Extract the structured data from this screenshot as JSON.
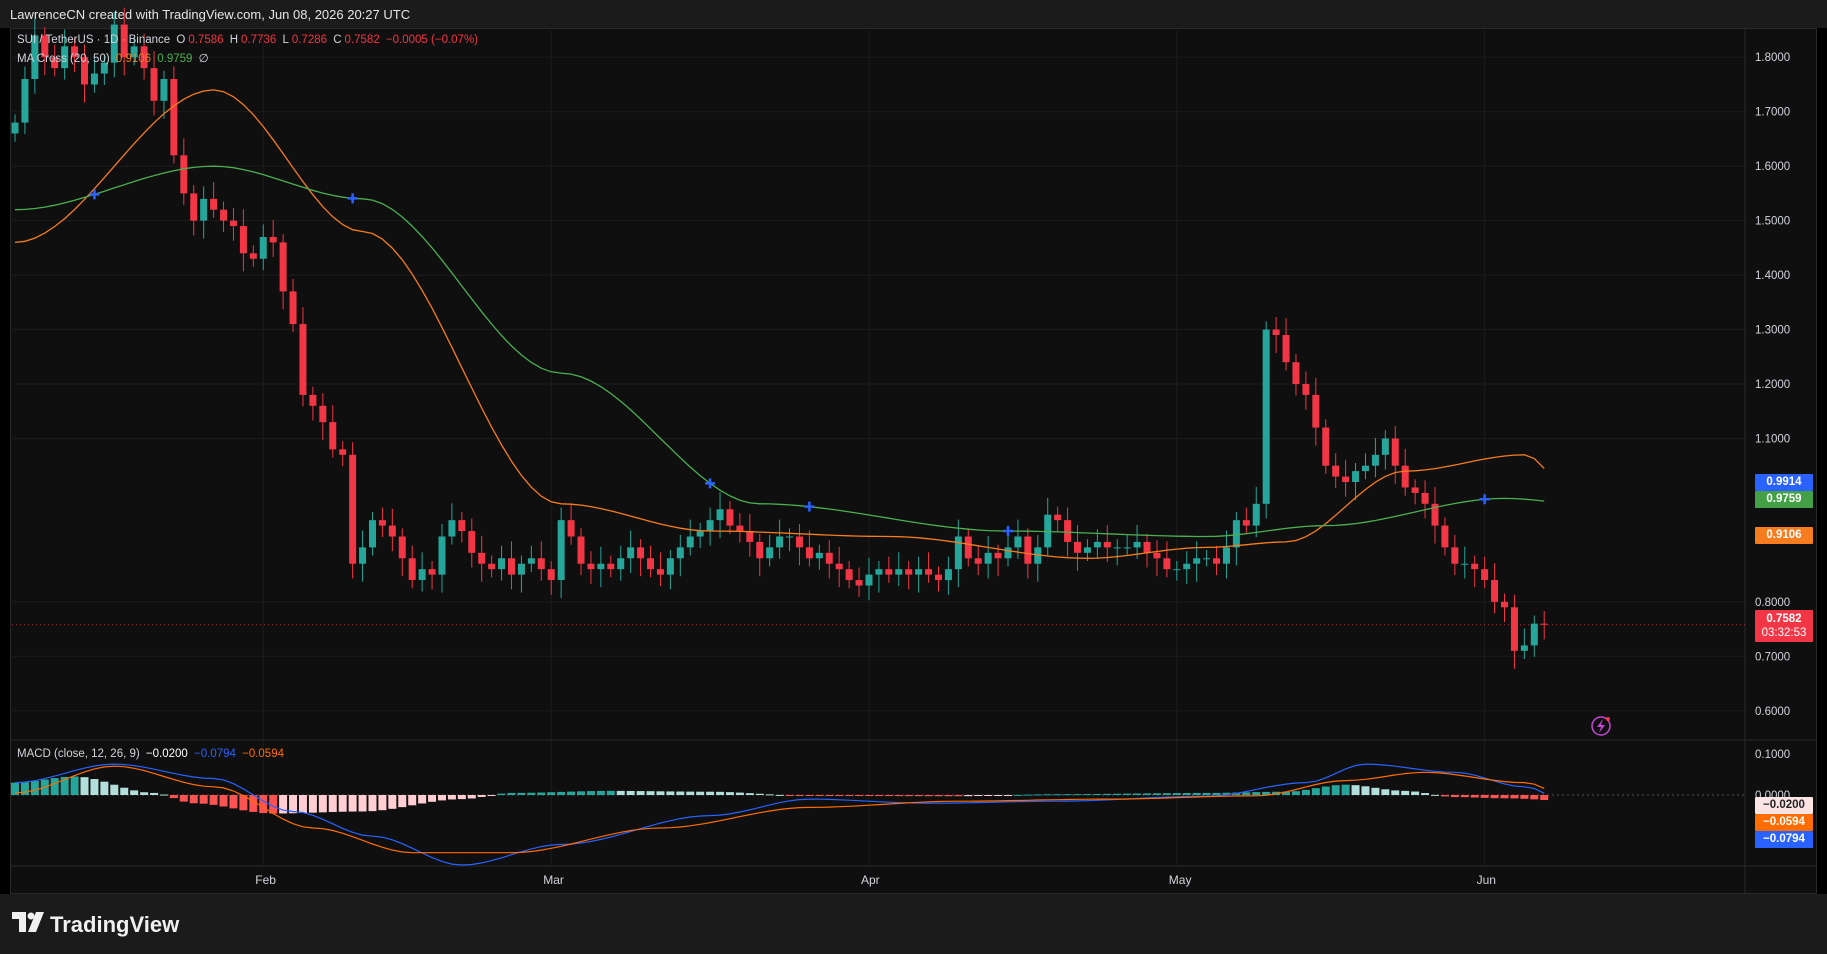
{
  "header": {
    "attribution": "LawrenceCN created with TradingView.com, Jun 08, 2026 20:27 UTC"
  },
  "legend": {
    "symbol": "SUI / TetherUS · 1D · Binance",
    "o_label": "O",
    "o": "0.7586",
    "h_label": "H",
    "h": "0.7736",
    "l_label": "L",
    "l": "0.7286",
    "c_label": "C",
    "c": "0.7582",
    "change": "−0.0005 (−0.07%)",
    "ma_label": "MA Cross (20, 50)",
    "ma20": "0.9106",
    "ma50": "0.9759",
    "ma_extra": "∅"
  },
  "macd_legend": {
    "label": "MACD (close, 12, 26, 9)",
    "hist": "−0.0200",
    "macd": "−0.0794",
    "signal": "−0.0594"
  },
  "price_axis": {
    "ticks": [
      "1.8000",
      "1.7000",
      "1.6000",
      "1.5000",
      "1.4000",
      "1.3000",
      "1.2000",
      "1.1000",
      "0.8000",
      "0.7000",
      "0.6000"
    ],
    "tags": {
      "crossover": "0.9914",
      "ma50": "0.9759",
      "ma20": "0.9106",
      "last": "0.7582",
      "countdown": "03:32:53"
    }
  },
  "macd_axis": {
    "ticks": [
      "0.1000",
      "0.0000"
    ],
    "tags": {
      "hist": "−0.0200",
      "signal": "−0.0594",
      "macd": "−0.0794"
    }
  },
  "time_axis": {
    "labels": [
      "Feb",
      "Mar",
      "Apr",
      "May",
      "Jun"
    ]
  },
  "branding": {
    "logo_mark": "𝟭𝟳",
    "logo_text": "TradingView"
  },
  "colors": {
    "up": "#26a69a",
    "down": "#f23645",
    "ma20": "#f57c1f",
    "ma50": "#4caf50",
    "macd": "#2962ff",
    "signal": "#ff6d00",
    "cross": "#2962ff"
  },
  "chart_data": [
    {
      "type": "candlestick",
      "title": "SUI / TetherUS · 1D · Binance",
      "interval": "1D",
      "ylim": [
        0.55,
        1.85
      ],
      "x_labels": [
        "Feb",
        "Mar",
        "Apr",
        "May",
        "Jun"
      ],
      "ohlc_note": "approximate daily closes read from chart",
      "closes": [
        1.68,
        1.76,
        1.84,
        1.8,
        1.78,
        1.82,
        1.8,
        1.75,
        1.77,
        1.79,
        1.86,
        1.8,
        1.82,
        1.78,
        1.72,
        1.76,
        1.62,
        1.55,
        1.5,
        1.54,
        1.52,
        1.5,
        1.49,
        1.44,
        1.43,
        1.47,
        1.46,
        1.37,
        1.31,
        1.18,
        1.16,
        1.13,
        1.08,
        1.07,
        0.87,
        0.9,
        0.95,
        0.94,
        0.92,
        0.88,
        0.84,
        0.86,
        0.85,
        0.92,
        0.95,
        0.93,
        0.89,
        0.87,
        0.86,
        0.88,
        0.85,
        0.87,
        0.88,
        0.86,
        0.84,
        0.95,
        0.92,
        0.87,
        0.86,
        0.87,
        0.86,
        0.88,
        0.9,
        0.88,
        0.86,
        0.85,
        0.88,
        0.9,
        0.92,
        0.93,
        0.95,
        0.97,
        0.94,
        0.93,
        0.91,
        0.88,
        0.9,
        0.92,
        0.92,
        0.9,
        0.88,
        0.89,
        0.87,
        0.86,
        0.84,
        0.83,
        0.85,
        0.86,
        0.85,
        0.86,
        0.85,
        0.86,
        0.85,
        0.84,
        0.86,
        0.92,
        0.88,
        0.87,
        0.89,
        0.88,
        0.9,
        0.92,
        0.87,
        0.9,
        0.96,
        0.95,
        0.91,
        0.89,
        0.9,
        0.91,
        0.9,
        0.9,
        0.9,
        0.91,
        0.89,
        0.88,
        0.86,
        0.86,
        0.87,
        0.88,
        0.88,
        0.87,
        0.9,
        0.95,
        0.94,
        0.98,
        1.3,
        1.29,
        1.24,
        1.2,
        1.18,
        1.12,
        1.05,
        1.03,
        1.02,
        1.04,
        1.05,
        1.07,
        1.1,
        1.05,
        1.01,
        1.0,
        0.98,
        0.94,
        0.9,
        0.87,
        0.87,
        0.86,
        0.84,
        0.8,
        0.79,
        0.71,
        0.72,
        0.76,
        0.758
      ]
    },
    {
      "type": "line",
      "series": [
        {
          "name": "MA 20",
          "values_at": [
            [
              0,
              1.46
            ],
            [
              20,
              1.74
            ],
            [
              35,
              1.48
            ],
            [
              55,
              0.98
            ],
            [
              70,
              0.93
            ],
            [
              88,
              0.92
            ],
            [
              108,
              0.88
            ],
            [
              120,
              0.9
            ],
            [
              128,
              0.91
            ],
            [
              140,
              1.04
            ],
            [
              152,
              1.07
            ],
            [
              160,
              0.91
            ]
          ]
        },
        {
          "name": "MA 50",
          "values_at": [
            [
              0,
              1.52
            ],
            [
              20,
              1.6
            ],
            [
              35,
              1.54
            ],
            [
              55,
              1.22
            ],
            [
              75,
              0.98
            ],
            [
              100,
              0.93
            ],
            [
              120,
              0.92
            ],
            [
              132,
              0.94
            ],
            [
              150,
              0.99
            ],
            [
              160,
              0.976
            ]
          ]
        }
      ]
    },
    {
      "type": "bar",
      "title": "MACD (close, 12, 26, 9)",
      "ylim": [
        -0.16,
        0.11
      ],
      "series": [
        {
          "name": "histogram",
          "values_at": [
            [
              0,
              0.03
            ],
            [
              6,
              0.045
            ],
            [
              14,
              0.005
            ],
            [
              18,
              -0.02
            ],
            [
              26,
              -0.045
            ],
            [
              35,
              -0.04
            ],
            [
              45,
              -0.01
            ],
            [
              50,
              0.005
            ],
            [
              60,
              0.01
            ],
            [
              70,
              0.008
            ],
            [
              80,
              -0.002
            ],
            [
              95,
              -0.003
            ],
            [
              105,
              0.002
            ],
            [
              120,
              0.005
            ],
            [
              128,
              0.008
            ],
            [
              134,
              0.025
            ],
            [
              140,
              0.01
            ],
            [
              145,
              -0.005
            ],
            [
              150,
              -0.008
            ],
            [
              160,
              -0.02
            ]
          ]
        },
        {
          "name": "MACD",
          "values_at": [
            [
              0,
              0.03
            ],
            [
              10,
              0.075
            ],
            [
              20,
              0.04
            ],
            [
              28,
              -0.04
            ],
            [
              36,
              -0.1
            ],
            [
              45,
              -0.17
            ],
            [
              55,
              -0.12
            ],
            [
              70,
              -0.05
            ],
            [
              80,
              -0.01
            ],
            [
              92,
              -0.02
            ],
            [
              105,
              -0.015
            ],
            [
              120,
              -0.003
            ],
            [
              130,
              0.03
            ],
            [
              136,
              0.075
            ],
            [
              145,
              0.055
            ],
            [
              152,
              0.02
            ],
            [
              160,
              -0.0794
            ]
          ]
        },
        {
          "name": "Signal",
          "values_at": [
            [
              0,
              0.005
            ],
            [
              10,
              0.07
            ],
            [
              20,
              0.02
            ],
            [
              30,
              -0.08
            ],
            [
              40,
              -0.14
            ],
            [
              50,
              -0.14
            ],
            [
              65,
              -0.08
            ],
            [
              80,
              -0.03
            ],
            [
              95,
              -0.015
            ],
            [
              110,
              -0.01
            ],
            [
              125,
              -0.002
            ],
            [
              134,
              0.035
            ],
            [
              142,
              0.055
            ],
            [
              152,
              0.03
            ],
            [
              160,
              -0.0594
            ]
          ]
        }
      ]
    }
  ]
}
